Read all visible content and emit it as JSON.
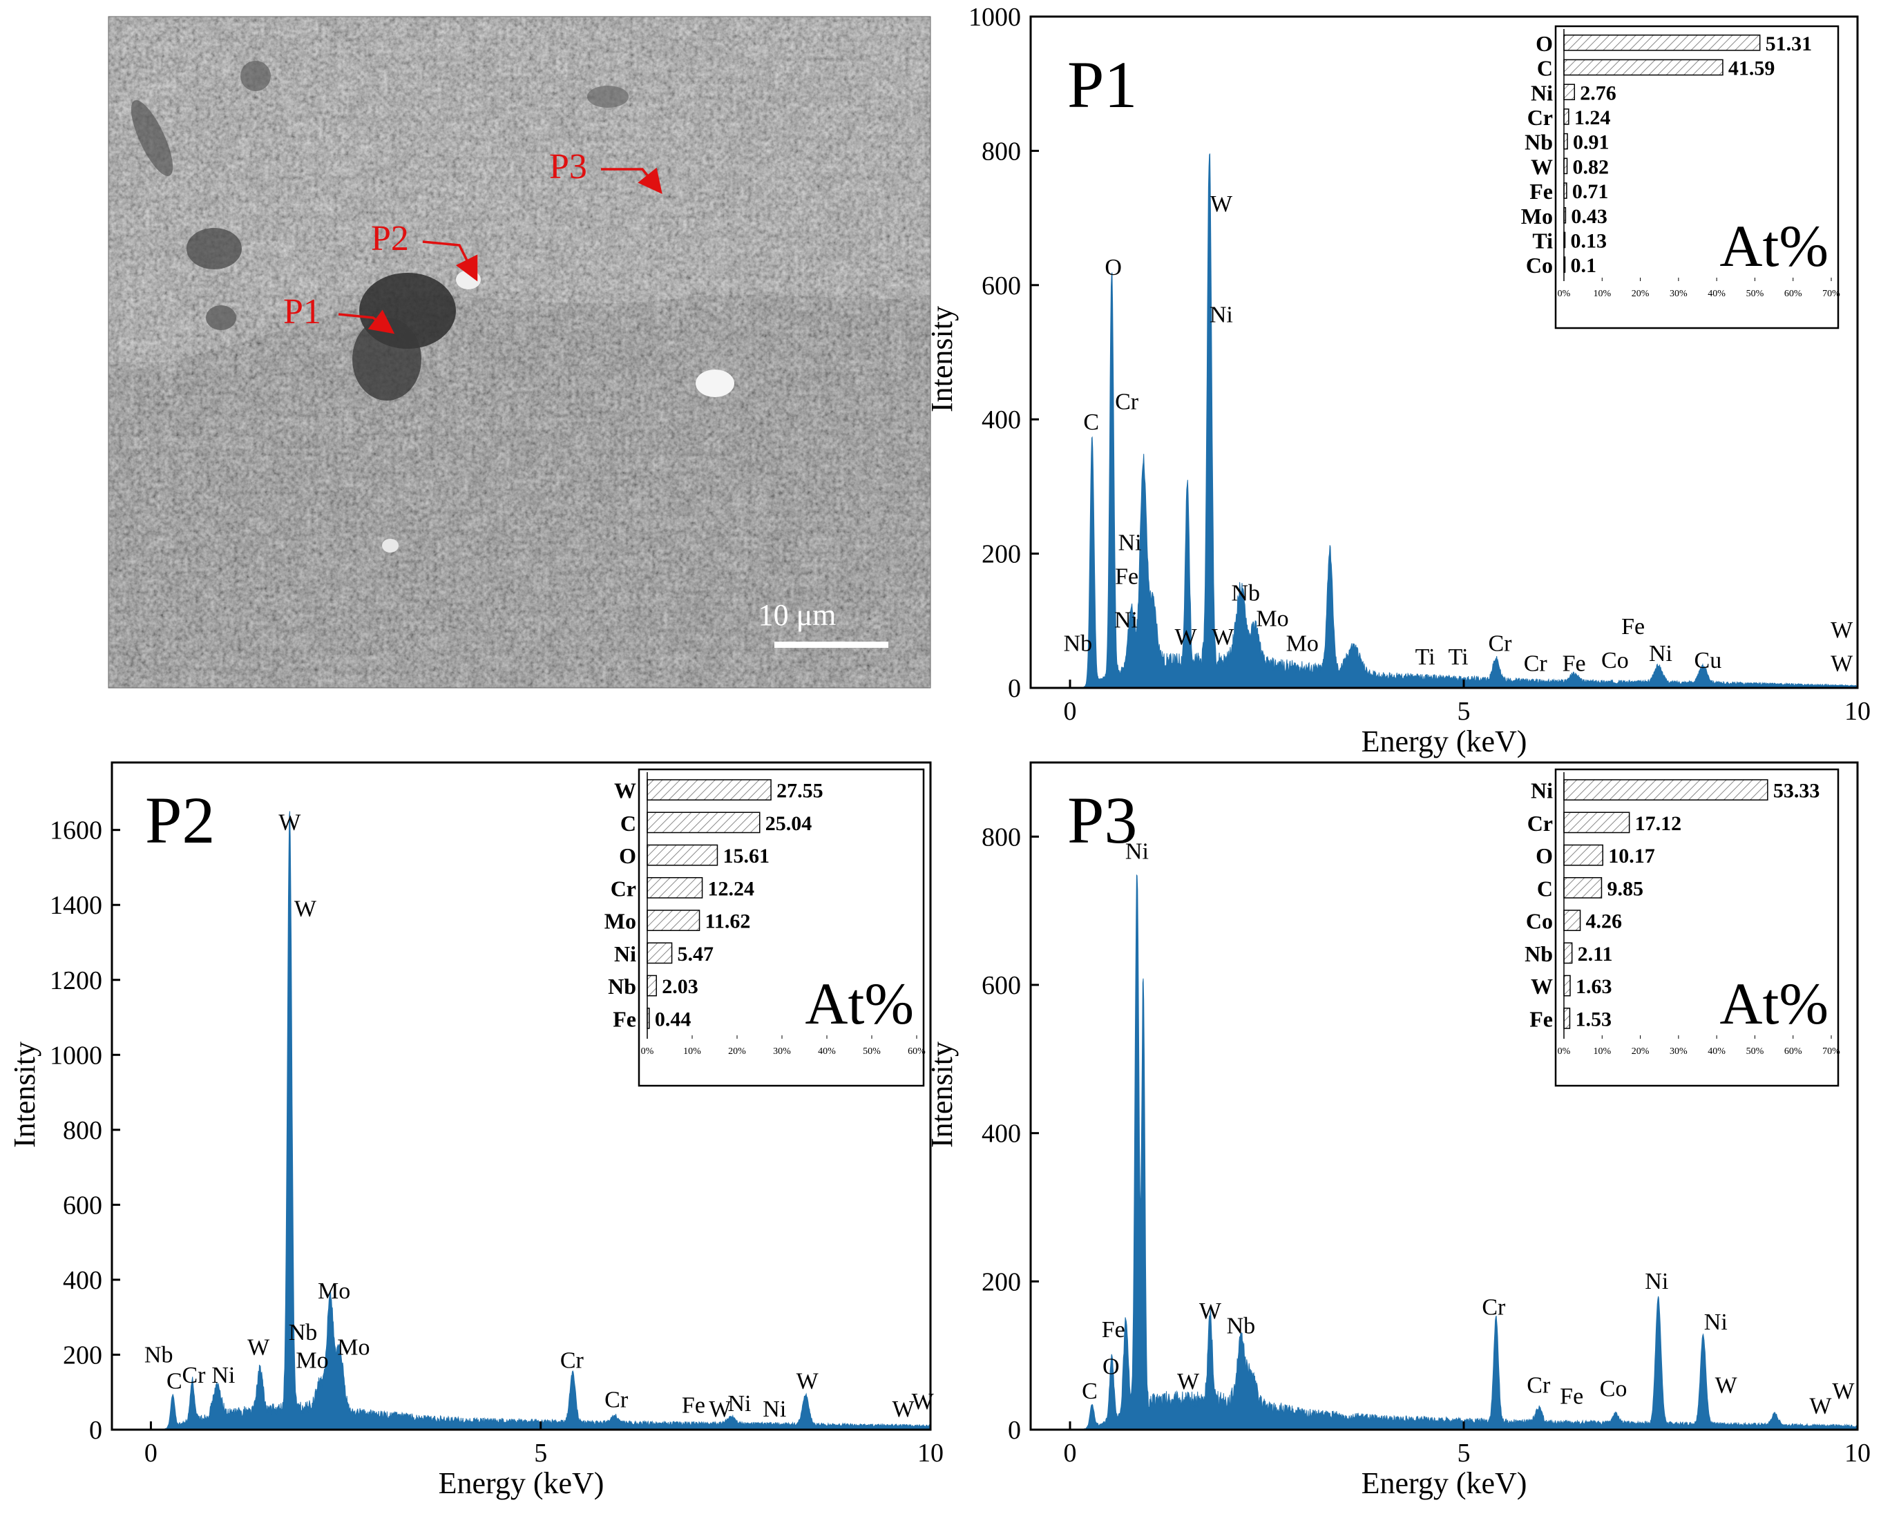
{
  "sem_image": {
    "labels": [
      {
        "text": "P1"
      },
      {
        "text": "P2"
      },
      {
        "text": "P3"
      }
    ],
    "scale_bar_label": "10 μm",
    "marker_color": "#e01010"
  },
  "colors": {
    "spectrum": "#1f6fab",
    "axis": "#000000",
    "inset_bar_hatch": "#888888"
  },
  "chart_data": [
    {
      "id": "P1",
      "type": "area",
      "title": "P1",
      "xlabel": "Energy (keV)",
      "ylabel": "Intensity",
      "xlim": [
        -0.5,
        10
      ],
      "ylim": [
        0,
        1000
      ],
      "xticks": [
        0,
        5,
        10
      ],
      "yticks": [
        0,
        200,
        400,
        600,
        800,
        1000
      ],
      "peaks": [
        {
          "x": 0.28,
          "y": 370,
          "w": 0.025
        },
        {
          "x": 0.53,
          "y": 605,
          "w": 0.025
        },
        {
          "x": 0.78,
          "y": 95,
          "w": 0.04
        },
        {
          "x": 0.93,
          "y": 305,
          "w": 0.04
        },
        {
          "x": 1.05,
          "y": 95,
          "w": 0.05
        },
        {
          "x": 1.49,
          "y": 265,
          "w": 0.025
        },
        {
          "x": 1.77,
          "y": 765,
          "w": 0.028
        },
        {
          "x": 2.17,
          "y": 110,
          "w": 0.06
        },
        {
          "x": 2.35,
          "y": 55,
          "w": 0.05
        },
        {
          "x": 3.3,
          "y": 180,
          "w": 0.035
        },
        {
          "x": 3.6,
          "y": 40,
          "w": 0.08
        },
        {
          "x": 5.41,
          "y": 32,
          "w": 0.04
        },
        {
          "x": 6.4,
          "y": 12,
          "w": 0.05
        },
        {
          "x": 7.47,
          "y": 25,
          "w": 0.05
        },
        {
          "x": 8.04,
          "y": 25,
          "w": 0.05
        }
      ],
      "baseline": [
        [
          0.15,
          0
        ],
        [
          0.6,
          22
        ],
        [
          1.2,
          40
        ],
        [
          2.0,
          42
        ],
        [
          3.0,
          30
        ],
        [
          4.0,
          18
        ],
        [
          6.0,
          10
        ],
        [
          8.0,
          8
        ],
        [
          10.0,
          3
        ]
      ],
      "peak_labels": [
        {
          "text": "Nb",
          "x": 0.1,
          "y": 55
        },
        {
          "text": "C",
          "x": 0.27,
          "y": 385
        },
        {
          "text": "O",
          "x": 0.55,
          "y": 615
        },
        {
          "text": "Cr",
          "x": 0.72,
          "y": 415
        },
        {
          "text": "Ni",
          "x": 0.76,
          "y": 205
        },
        {
          "text": "Fe",
          "x": 0.72,
          "y": 155
        },
        {
          "text": "Ni",
          "x": 0.71,
          "y": 90
        },
        {
          "text": "W",
          "x": 1.47,
          "y": 65
        },
        {
          "text": "W",
          "x": 1.92,
          "y": 710
        },
        {
          "text": "Ni",
          "x": 1.92,
          "y": 545
        },
        {
          "text": "W",
          "x": 1.94,
          "y": 65
        },
        {
          "text": "Nb",
          "x": 2.23,
          "y": 130
        },
        {
          "text": "Mo",
          "x": 2.57,
          "y": 92
        },
        {
          "text": "Mo",
          "x": 2.95,
          "y": 55
        },
        {
          "text": "Ti",
          "x": 4.51,
          "y": 35
        },
        {
          "text": "Ti",
          "x": 4.93,
          "y": 35
        },
        {
          "text": "Cr",
          "x": 5.46,
          "y": 55
        },
        {
          "text": "Cr",
          "x": 5.91,
          "y": 25
        },
        {
          "text": "Fe",
          "x": 6.4,
          "y": 25
        },
        {
          "text": "Co",
          "x": 6.92,
          "y": 30
        },
        {
          "text": "Fe",
          "x": 7.15,
          "y": 80
        },
        {
          "text": "Ni",
          "x": 7.5,
          "y": 40
        },
        {
          "text": "Cu",
          "x": 8.1,
          "y": 30
        },
        {
          "text": "W",
          "x": 9.8,
          "y": 75
        },
        {
          "text": "W",
          "x": 9.8,
          "y": 25
        }
      ],
      "inset": {
        "label": "At%",
        "xmax": 70,
        "xticks": [
          "0%",
          "10%",
          "20%",
          "30%",
          "40%",
          "50%",
          "60%",
          "70%"
        ],
        "elements": [
          "O",
          "C",
          "Ni",
          "Cr",
          "Nb",
          "W",
          "Fe",
          "Mo",
          "Ti",
          "Co"
        ],
        "values": [
          51.31,
          41.59,
          2.76,
          1.24,
          0.91,
          0.82,
          0.71,
          0.43,
          0.13,
          0.1
        ],
        "value_labels": [
          "51.31",
          "41.59",
          "2.76",
          "1.24",
          "0.91",
          "0.82",
          "0.71",
          "0.43",
          "0.13",
          "0.1"
        ]
      }
    },
    {
      "id": "P2",
      "type": "area",
      "title": "P2",
      "xlabel": "Energy (keV)",
      "ylabel": "Intensity",
      "xlim": [
        -0.5,
        10
      ],
      "ylim": [
        0,
        1780
      ],
      "xticks": [
        0,
        5,
        10
      ],
      "yticks": [
        0,
        200,
        400,
        600,
        800,
        1000,
        1200,
        1400,
        1600
      ],
      "peaks": [
        {
          "x": 0.28,
          "y": 85,
          "w": 0.025
        },
        {
          "x": 0.53,
          "y": 110,
          "w": 0.025
        },
        {
          "x": 0.85,
          "y": 80,
          "w": 0.05
        },
        {
          "x": 1.4,
          "y": 110,
          "w": 0.035
        },
        {
          "x": 1.78,
          "y": 1585,
          "w": 0.028
        },
        {
          "x": 2.17,
          "y": 70,
          "w": 0.05
        },
        {
          "x": 2.3,
          "y": 300,
          "w": 0.04
        },
        {
          "x": 2.42,
          "y": 160,
          "w": 0.05
        },
        {
          "x": 5.41,
          "y": 135,
          "w": 0.035
        },
        {
          "x": 5.95,
          "y": 20,
          "w": 0.04
        },
        {
          "x": 7.45,
          "y": 20,
          "w": 0.05
        },
        {
          "x": 8.4,
          "y": 80,
          "w": 0.04
        }
      ],
      "baseline": [
        [
          0.15,
          0
        ],
        [
          0.6,
          30
        ],
        [
          1.2,
          50
        ],
        [
          2.0,
          60
        ],
        [
          3.0,
          38
        ],
        [
          4.0,
          25
        ],
        [
          6.0,
          18
        ],
        [
          8.0,
          15
        ],
        [
          10.0,
          10
        ]
      ],
      "peak_labels": [
        {
          "text": "Nb",
          "x": 0.1,
          "y": 180
        },
        {
          "text": "C",
          "x": 0.3,
          "y": 110
        },
        {
          "text": "Cr",
          "x": 0.55,
          "y": 125
        },
        {
          "text": "Ni",
          "x": 0.93,
          "y": 125
        },
        {
          "text": "W",
          "x": 1.38,
          "y": 200
        },
        {
          "text": "W",
          "x": 1.78,
          "y": 1600
        },
        {
          "text": "W",
          "x": 1.98,
          "y": 1370
        },
        {
          "text": "Nb",
          "x": 1.95,
          "y": 240
        },
        {
          "text": "Mo",
          "x": 2.07,
          "y": 165
        },
        {
          "text": "Mo",
          "x": 2.35,
          "y": 350
        },
        {
          "text": "Mo",
          "x": 2.6,
          "y": 200
        },
        {
          "text": "Cr",
          "x": 5.4,
          "y": 165
        },
        {
          "text": "Cr",
          "x": 5.97,
          "y": 60
        },
        {
          "text": "Fe",
          "x": 6.96,
          "y": 45
        },
        {
          "text": "W",
          "x": 7.3,
          "y": 35
        },
        {
          "text": "Ni",
          "x": 7.55,
          "y": 50
        },
        {
          "text": "Ni",
          "x": 8.0,
          "y": 35
        },
        {
          "text": "W",
          "x": 8.42,
          "y": 110
        },
        {
          "text": "W",
          "x": 9.65,
          "y": 35
        },
        {
          "text": "W",
          "x": 9.9,
          "y": 55
        }
      ],
      "inset": {
        "label": "At%",
        "xmax": 60,
        "xticks": [
          "0%",
          "10%",
          "20%",
          "30%",
          "40%",
          "50%",
          "60%"
        ],
        "elements": [
          "W",
          "C",
          "O",
          "Cr",
          "Mo",
          "Ni",
          "Nb",
          "Fe"
        ],
        "values": [
          27.55,
          25.04,
          15.61,
          12.24,
          11.62,
          5.47,
          2.03,
          0.44
        ],
        "value_labels": [
          "27.55",
          "25.04",
          "15.61",
          "12.24",
          "11.62",
          "5.47",
          "2.03",
          "0.44"
        ]
      }
    },
    {
      "id": "P3",
      "type": "area",
      "title": "P3",
      "xlabel": "Energy (keV)",
      "ylabel": "Intensity",
      "xlim": [
        -0.5,
        10
      ],
      "ylim": [
        0,
        900
      ],
      "xticks": [
        0,
        5,
        10
      ],
      "yticks": [
        0,
        200,
        400,
        600,
        800
      ],
      "peaks": [
        {
          "x": 0.28,
          "y": 30,
          "w": 0.025
        },
        {
          "x": 0.53,
          "y": 90,
          "w": 0.025
        },
        {
          "x": 0.71,
          "y": 130,
          "w": 0.03
        },
        {
          "x": 0.85,
          "y": 730,
          "w": 0.025
        },
        {
          "x": 0.93,
          "y": 580,
          "w": 0.02
        },
        {
          "x": 1.78,
          "y": 115,
          "w": 0.028
        },
        {
          "x": 2.17,
          "y": 80,
          "w": 0.05
        },
        {
          "x": 2.3,
          "y": 40,
          "w": 0.06
        },
        {
          "x": 5.41,
          "y": 140,
          "w": 0.03
        },
        {
          "x": 5.95,
          "y": 20,
          "w": 0.04
        },
        {
          "x": 6.93,
          "y": 12,
          "w": 0.04
        },
        {
          "x": 7.47,
          "y": 170,
          "w": 0.035
        },
        {
          "x": 8.04,
          "y": 120,
          "w": 0.035
        },
        {
          "x": 8.95,
          "y": 15,
          "w": 0.04
        }
      ],
      "baseline": [
        [
          0.15,
          0
        ],
        [
          0.6,
          15
        ],
        [
          1.1,
          40
        ],
        [
          2.0,
          40
        ],
        [
          3.0,
          22
        ],
        [
          4.0,
          15
        ],
        [
          6.0,
          10
        ],
        [
          8.0,
          8
        ],
        [
          10.0,
          5
        ]
      ],
      "peak_labels": [
        {
          "text": "C",
          "x": 0.25,
          "y": 42
        },
        {
          "text": "Fe",
          "x": 0.55,
          "y": 125
        },
        {
          "text": "O",
          "x": 0.52,
          "y": 75
        },
        {
          "text": "Ni",
          "x": 0.85,
          "y": 770
        },
        {
          "text": "W",
          "x": 1.5,
          "y": 55
        },
        {
          "text": "W",
          "x": 1.78,
          "y": 150
        },
        {
          "text": "Nb",
          "x": 2.17,
          "y": 130
        },
        {
          "text": "Cr",
          "x": 5.38,
          "y": 155
        },
        {
          "text": "Cr",
          "x": 5.95,
          "y": 50
        },
        {
          "text": "Fe",
          "x": 6.37,
          "y": 35
        },
        {
          "text": "Co",
          "x": 6.9,
          "y": 45
        },
        {
          "text": "Ni",
          "x": 7.45,
          "y": 190
        },
        {
          "text": "Ni",
          "x": 8.2,
          "y": 135
        },
        {
          "text": "W",
          "x": 8.33,
          "y": 50
        },
        {
          "text": "W",
          "x": 9.53,
          "y": 22
        },
        {
          "text": "W",
          "x": 9.82,
          "y": 42
        }
      ],
      "inset": {
        "label": "At%",
        "xmax": 70,
        "xticks": [
          "0%",
          "10%",
          "20%",
          "30%",
          "40%",
          "50%",
          "60%",
          "70%"
        ],
        "elements": [
          "Ni",
          "Cr",
          "O",
          "C",
          "Co",
          "Nb",
          "W",
          "Fe"
        ],
        "values": [
          53.33,
          17.12,
          10.17,
          9.85,
          4.26,
          2.11,
          1.63,
          1.53
        ],
        "value_labels": [
          "53.33",
          "17.12",
          "10.17",
          "9.85",
          "4.26",
          "2.11",
          "1.63",
          "1.53"
        ]
      }
    }
  ]
}
